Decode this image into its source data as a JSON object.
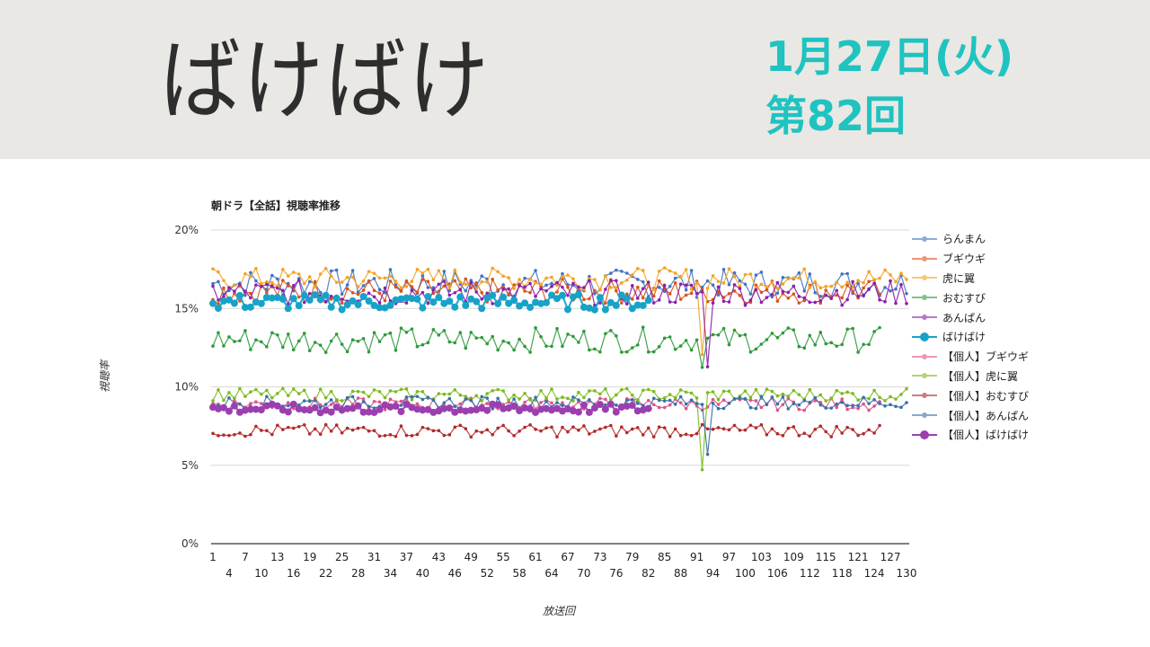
{
  "header": {
    "title": "ばけばけ",
    "date": "1月27日(火)",
    "episode": "第82回"
  },
  "chart_data": {
    "type": "line",
    "title": "朝ドラ【全話】視聴率推移",
    "xlabel": "放送回",
    "ylabel": "視聴率",
    "ylim": [
      0,
      20
    ],
    "yticks": [
      "0%",
      "5%",
      "10%",
      "15%",
      "20%"
    ],
    "xticks_top": [
      "1",
      "7",
      "13",
      "19",
      "25",
      "31",
      "37",
      "43",
      "49",
      "55",
      "61",
      "67",
      "73",
      "79",
      "85",
      "91",
      "97",
      "103",
      "109",
      "115",
      "121",
      "127"
    ],
    "xticks_bottom": [
      "4",
      "10",
      "16",
      "22",
      "28",
      "34",
      "40",
      "46",
      "52",
      "58",
      "64",
      "70",
      "76",
      "82",
      "88",
      "94",
      "100",
      "106",
      "112",
      "118",
      "124",
      "130"
    ],
    "grid": true,
    "legend_position": "right",
    "series": [
      {
        "name": "らんまん",
        "color": "#4472c4",
        "bold": false,
        "approx_level": 16.6,
        "spread": 0.9,
        "length": 130
      },
      {
        "name": "ブギウギ",
        "color": "#d9531e",
        "bold": false,
        "approx_level": 16.1,
        "spread": 0.8,
        "length": 125
      },
      {
        "name": "虎に翼",
        "color": "#f4a323",
        "bold": false,
        "approx_level": 16.9,
        "spread": 0.7,
        "length": 130
      },
      {
        "name": "おむすび",
        "color": "#2e9a3a",
        "bold": false,
        "approx_level": 13.0,
        "spread": 0.8,
        "length": 125
      },
      {
        "name": "あんぱん",
        "color": "#8b1fa9",
        "bold": false,
        "approx_level": 16.0,
        "spread": 0.8,
        "length": 130
      },
      {
        "name": "ばけばけ",
        "color": "#17a2c8",
        "bold": true,
        "approx_level": 15.4,
        "spread": 0.5,
        "length": 82
      },
      {
        "name": "【個人】ブギウギ",
        "color": "#e0528a",
        "bold": false,
        "approx_level": 8.9,
        "spread": 0.4,
        "length": 125
      },
      {
        "name": "【個人】虎に翼",
        "color": "#7cbb1e",
        "bold": false,
        "approx_level": 9.5,
        "spread": 0.4,
        "length": 130
      },
      {
        "name": "【個人】おむすび",
        "color": "#b22a2a",
        "bold": false,
        "approx_level": 7.2,
        "spread": 0.4,
        "length": 125
      },
      {
        "name": "【個人】あんぱん",
        "color": "#3a6fa8",
        "bold": false,
        "approx_level": 9.0,
        "spread": 0.4,
        "length": 130
      },
      {
        "name": "【個人】ばけばけ",
        "color": "#9b3fb0",
        "bold": true,
        "approx_level": 8.6,
        "spread": 0.3,
        "length": 82
      }
    ]
  }
}
